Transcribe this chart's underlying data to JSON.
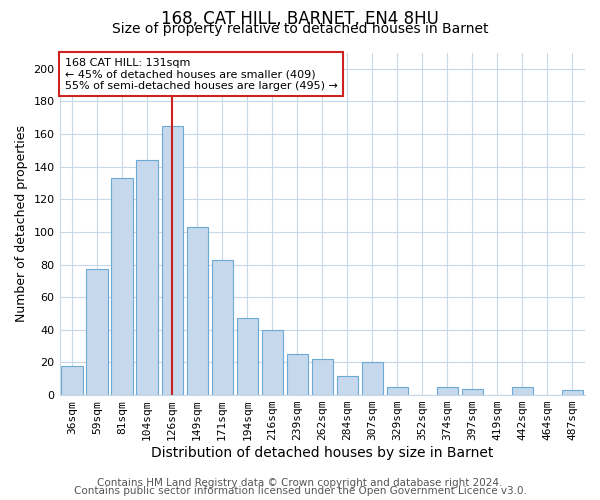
{
  "title1": "168, CAT HILL, BARNET, EN4 8HU",
  "title2": "Size of property relative to detached houses in Barnet",
  "xlabel": "Distribution of detached houses by size in Barnet",
  "ylabel": "Number of detached properties",
  "categories": [
    "36sqm",
    "59sqm",
    "81sqm",
    "104sqm",
    "126sqm",
    "149sqm",
    "171sqm",
    "194sqm",
    "216sqm",
    "239sqm",
    "262sqm",
    "284sqm",
    "307sqm",
    "329sqm",
    "352sqm",
    "374sqm",
    "397sqm",
    "419sqm",
    "442sqm",
    "464sqm",
    "487sqm"
  ],
  "values": [
    18,
    77,
    133,
    144,
    165,
    103,
    83,
    47,
    40,
    25,
    22,
    12,
    20,
    5,
    0,
    5,
    4,
    0,
    5,
    0,
    3
  ],
  "bar_color": "#c5d8ec",
  "bar_edge_color": "#6aaad4",
  "vline_x_index": 4,
  "vline_color": "#cc2222",
  "annotation_line1": "168 CAT HILL: 131sqm",
  "annotation_line2": "← 45% of detached houses are smaller (409)",
  "annotation_line3": "55% of semi-detached houses are larger (495) →",
  "annotation_box_color": "#ffffff",
  "annotation_box_edgecolor": "#cc2222",
  "ylim": [
    0,
    210
  ],
  "yticks": [
    0,
    20,
    40,
    60,
    80,
    100,
    120,
    140,
    160,
    180,
    200
  ],
  "footer1": "Contains HM Land Registry data © Crown copyright and database right 2024.",
  "footer2": "Contains public sector information licensed under the Open Government Licence v3.0.",
  "background_color": "#ffffff",
  "plot_bg_color": "#ffffff",
  "grid_color": "#c8d8e8",
  "title1_fontsize": 12,
  "title2_fontsize": 10,
  "xlabel_fontsize": 10,
  "ylabel_fontsize": 9,
  "tick_fontsize": 8,
  "footer_fontsize": 7.5
}
